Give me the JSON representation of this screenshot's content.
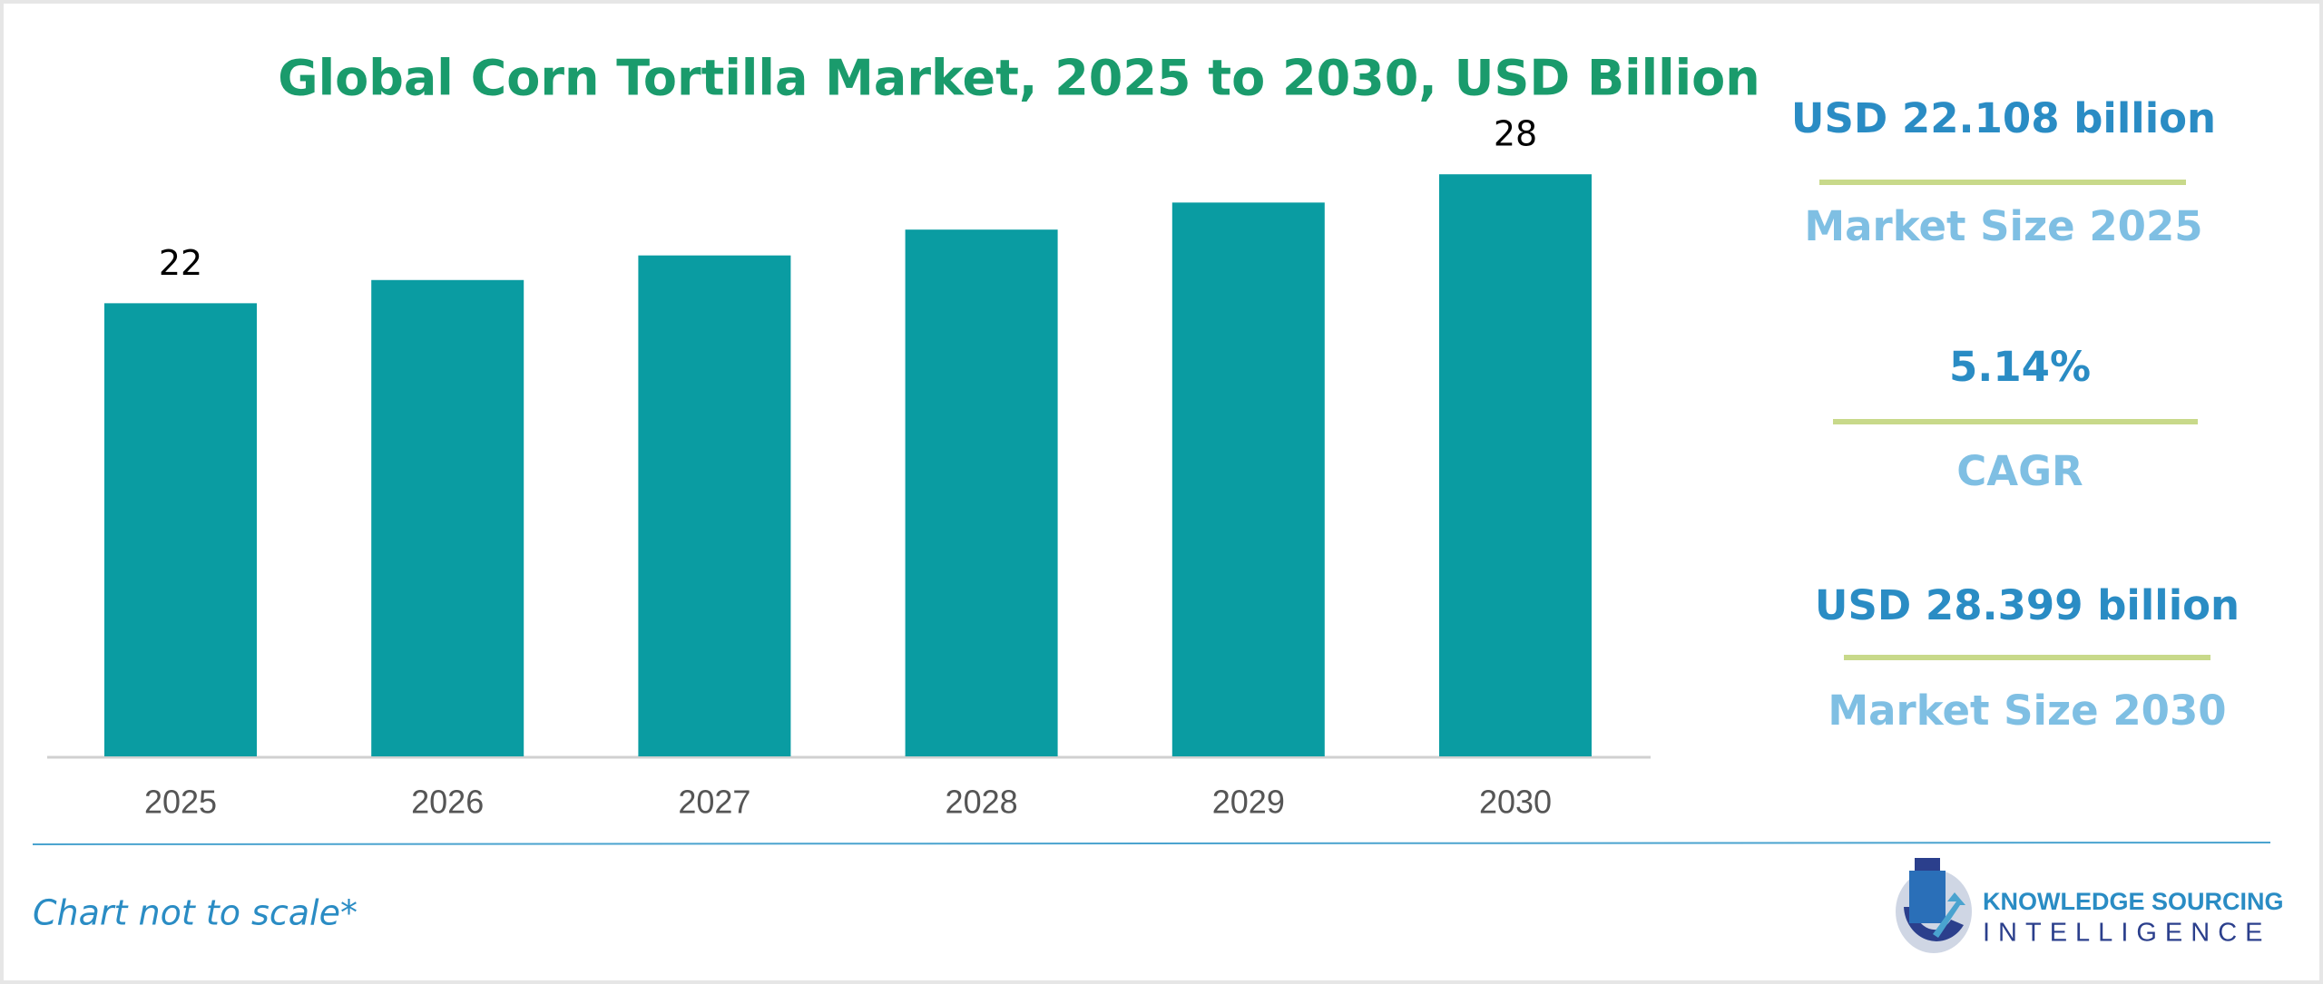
{
  "chart_data": {
    "type": "bar",
    "title": "Global Corn Tortilla Market, 2025 to 2030, USD Billion",
    "categories": [
      "2025",
      "2026",
      "2027",
      "2028",
      "2029",
      "2030"
    ],
    "values": [
      22.108,
      23.24,
      24.44,
      25.7,
      27.02,
      28.399
    ],
    "value_labels": [
      "22",
      null,
      null,
      null,
      null,
      "28"
    ],
    "color": "#0a9ca2"
  },
  "stats": [
    {
      "value": "USD 22.108 billion",
      "label": "Market Size 2025"
    },
    {
      "value": "5.14%",
      "label": "CAGR"
    },
    {
      "value": "USD 28.399 billion",
      "label": "Market Size 2030"
    }
  ],
  "footer": {
    "note": "Chart not to scale*",
    "logo_line1": "KNOWLEDGE SOURCING",
    "logo_line2": "INTELLIGENCE"
  }
}
